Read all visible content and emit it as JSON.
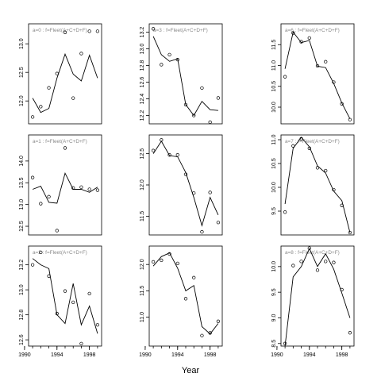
{
  "chart_data": {
    "type": "scatter",
    "xlabel": "Year",
    "x_ticks": [
      1990,
      1994,
      1998
    ],
    "panels": [
      {
        "title": "a=0  :  f=Fleet(A+C+D+F)",
        "ylim": [
          11.6,
          13.35
        ],
        "yticks": [
          12.0,
          12.5,
          13.0
        ],
        "x": [
          1991,
          1992,
          1993,
          1994,
          1995,
          1996,
          1997,
          1998,
          1999
        ],
        "observed": [
          11.72,
          11.9,
          12.23,
          12.48,
          13.2,
          12.05,
          12.83,
          13.22,
          13.22
        ],
        "fitted": [
          12.05,
          11.8,
          11.87,
          12.4,
          12.82,
          12.47,
          12.35,
          12.8,
          12.4
        ]
      },
      {
        "title": "a=1  :  f=Fleet(A+C+D+F)",
        "ylim": [
          12.3,
          14.6
        ],
        "yticks": [
          12.5,
          13.0,
          13.5,
          14.0
        ],
        "x": [
          1991,
          1992,
          1993,
          1994,
          1995,
          1996,
          1997,
          1998,
          1999
        ],
        "observed": [
          13.62,
          13.02,
          13.18,
          12.4,
          14.3,
          13.38,
          13.4,
          13.35,
          13.33
        ],
        "fitted": [
          13.35,
          13.42,
          13.05,
          13.03,
          13.72,
          13.35,
          13.35,
          13.28,
          13.4
        ]
      },
      {
        "title": "a=2  :  f=Fleet(A+C+D+F)",
        "ylim": [
          12.55,
          13.35
        ],
        "yticks": [
          12.6,
          12.8,
          13.0,
          13.2
        ],
        "x": [
          1991,
          1992,
          1993,
          1994,
          1995,
          1996,
          1997,
          1998,
          1999
        ],
        "observed": [
          13.2,
          13.3,
          13.11,
          12.81,
          12.99,
          12.9,
          12.57,
          12.97,
          12.72
        ],
        "fitted": [
          13.25,
          13.2,
          13.17,
          12.8,
          12.73,
          13.05,
          12.72,
          12.87,
          12.65
        ]
      },
      {
        "title": "a=3  :  f=Fleet(A+C+D+F)",
        "ylim": [
          12.1,
          13.3
        ],
        "yticks": [
          12.2,
          12.4,
          12.6,
          12.8,
          13.0,
          13.2
        ],
        "x": [
          1991,
          1992,
          1993,
          1994,
          1995,
          1996,
          1997,
          1998,
          1999
        ],
        "observed": [
          13.24,
          12.81,
          12.93,
          12.87,
          12.33,
          12.2,
          12.53,
          12.12,
          12.41
        ],
        "fitted": [
          13.15,
          12.93,
          12.85,
          12.88,
          12.33,
          12.2,
          12.37,
          12.27,
          12.26
        ]
      },
      {
        "title": "",
        "ylim": [
          11.2,
          12.8
        ],
        "yticks": [
          11.5,
          12.0,
          12.5
        ],
        "x": [
          1991,
          1992,
          1993,
          1994,
          1995,
          1996,
          1997,
          1998,
          1999
        ],
        "observed": [
          12.55,
          12.72,
          12.48,
          12.48,
          12.17,
          11.87,
          11.25,
          11.88,
          11.4
        ],
        "fitted": [
          12.5,
          12.7,
          12.47,
          12.45,
          12.2,
          11.8,
          11.35,
          11.8,
          11.52
        ]
      },
      {
        "title": "",
        "ylim": [
          10.45,
          12.35
        ],
        "yticks": [
          11.0,
          11.5,
          12.0
        ],
        "x": [
          1991,
          1992,
          1993,
          1994,
          1995,
          1996,
          1997,
          1998,
          1999
        ],
        "observed": [
          12.05,
          12.08,
          12.2,
          12.02,
          11.35,
          11.75,
          10.65,
          10.7,
          10.92
        ],
        "fitted": [
          11.97,
          12.15,
          12.22,
          11.93,
          11.5,
          11.6,
          10.82,
          10.68,
          10.88
        ]
      },
      {
        "title": "a=6  :  f=Fleet(A+C+D+F)",
        "ylim": [
          9.6,
          12.0
        ],
        "yticks": [
          10.0,
          10.5,
          11.0,
          11.5
        ],
        "x": [
          1991,
          1992,
          1993,
          1994,
          1995,
          1996,
          1997,
          1998,
          1999
        ],
        "observed": [
          10.73,
          11.78,
          11.57,
          11.66,
          10.99,
          11.09,
          10.6,
          10.08,
          9.7
        ],
        "fitted": [
          10.92,
          11.8,
          11.55,
          11.6,
          10.98,
          10.95,
          10.57,
          10.1,
          9.72
        ]
      },
      {
        "title": "a=7  :  f=Fleet(A+C+D+F)",
        "ylim": [
          9.0,
          11.1
        ],
        "yticks": [
          9.5,
          10.0,
          10.5,
          11.0
        ],
        "x": [
          1991,
          1992,
          1993,
          1994,
          1995,
          1996,
          1997,
          1998,
          1999
        ],
        "observed": [
          9.48,
          10.87,
          11.02,
          10.82,
          10.41,
          10.35,
          9.95,
          9.62,
          9.05
        ],
        "fitted": [
          9.65,
          10.82,
          11.05,
          10.85,
          10.45,
          10.3,
          9.92,
          9.72,
          9.05
        ]
      },
      {
        "title": "a=8  :  f=Fleet(A+C+D+F)",
        "ylim": [
          8.45,
          10.4
        ],
        "yticks": [
          8.5,
          9.0,
          9.5,
          10.0
        ],
        "x": [
          1991,
          1992,
          1993,
          1994,
          1995,
          1996,
          1997,
          1998,
          1999
        ],
        "observed": [
          8.5,
          10.02,
          10.1,
          10.36,
          9.93,
          10.1,
          10.08,
          9.55,
          8.71
        ],
        "fitted": [
          8.45,
          9.8,
          10.0,
          10.35,
          10.0,
          10.25,
          9.95,
          9.48,
          9.0
        ]
      }
    ]
  }
}
